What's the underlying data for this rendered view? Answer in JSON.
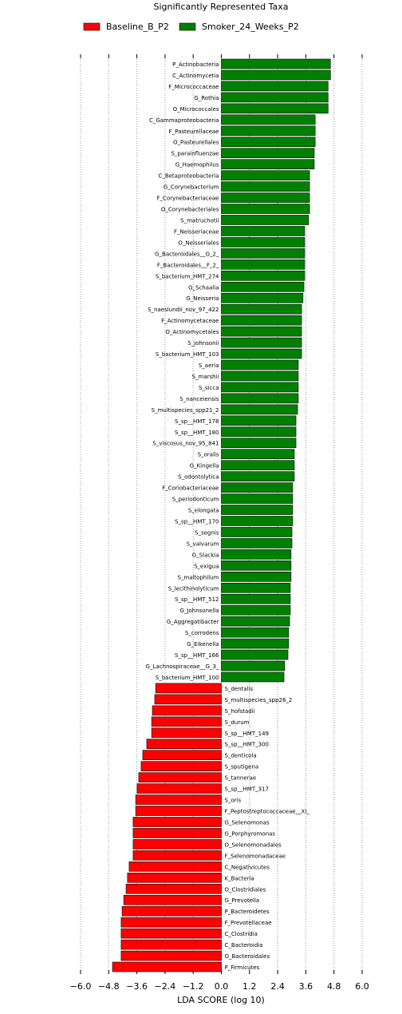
{
  "chart_data": {
    "type": "bar",
    "orientation": "horizontal",
    "title": "Significantly Represented Taxa",
    "xlabel": "LDA SCORE (log 10)",
    "categories": [
      "P_Actinobacteria",
      "C_Actinomycetia",
      "F_Micrococcaceae",
      "G_Rothia",
      "O_Micrococcales",
      "C_Gammaproteobacteria",
      "F_Pasteurellaceae",
      "O_Pasteurellales",
      "S_parainfluenzae",
      "G_Haemophilus",
      "C_Betaproteobacteria",
      "G_Corynebacterium",
      "F_Corynebacteriaceae",
      "O_Corynebacteriales",
      "S_matruchotii",
      "F_Neisseriaceae",
      "O_Neisseriales",
      "G_Bacteroidales__G_2_",
      "F_Bacteroidales__F_2_",
      "S_bacterium_HMT_274",
      "G_Schaalia",
      "G_Neisseria",
      "S_naeslundii_nov_97_422",
      "F_Actinomycetaceae",
      "O_Actinomycetales",
      "S_johnsonii",
      "S_bacterium_HMT_103",
      "S_aeria",
      "S_marshii",
      "S_sicca",
      "S_nanceiensis",
      "S_multispecies_spp21_2",
      "S_sp__HMT_178",
      "S_sp__HMT_180",
      "S_viscosus_nov_95_841",
      "S_oralis",
      "G_Kingella",
      "S_odontolytica",
      "F_Coriobacteriaceae",
      "S_periodonticum",
      "S_elongata",
      "S_sp__HMT_170",
      "S_segnis",
      "S_valvarum",
      "G_Slackia",
      "S_exigua",
      "S_maltophilum",
      "S_lecithinolyticum",
      "S_sp__HMT_512",
      "G_Johnsonella",
      "G_Aggregatibacter",
      "S_corrodens",
      "G_Eikenella",
      "S_sp__HMT_166",
      "G_Lachnospiraceae__G_3_",
      "S_bacterium_HMT_100",
      "S_dentalis",
      "S_multispecies_spp26_2",
      "S_hofstadii",
      "S_durum",
      "S_sp__HMT_149",
      "S_sp__HMT_300",
      "S_denticola",
      "S_sputigena",
      "S_tannerae",
      "S_sp__HMT_317",
      "S_oris",
      "F_Peptostreptococcaceae__XI_",
      "G_Selenomonas",
      "G_Porphyromonas",
      "O_Selenomonadales",
      "F_Selenomonadaceae",
      "C_Negativicutes",
      "K_Bacteria",
      "O_Clostridiales",
      "G_Prevotella",
      "P_Bacteroidetes",
      "F_Prevotellaceae",
      "C_Clostridia",
      "C_Bacteroidia",
      "O_Bacteroidales",
      "P_Firmicutes"
    ],
    "series": [
      {
        "name": "Baseline_B_P2",
        "color": "#ff0000",
        "values": [
          null,
          null,
          null,
          null,
          null,
          null,
          null,
          null,
          null,
          null,
          null,
          null,
          null,
          null,
          null,
          null,
          null,
          null,
          null,
          null,
          null,
          null,
          null,
          null,
          null,
          null,
          null,
          null,
          null,
          null,
          null,
          null,
          null,
          null,
          null,
          null,
          null,
          null,
          null,
          null,
          null,
          null,
          null,
          null,
          null,
          null,
          null,
          null,
          null,
          null,
          null,
          null,
          null,
          null,
          null,
          null,
          -2.8,
          -2.84,
          -2.94,
          -2.97,
          -2.97,
          -3.18,
          -3.35,
          -3.42,
          -3.52,
          -3.59,
          -3.65,
          -3.65,
          -3.76,
          -3.76,
          -3.76,
          -3.76,
          -3.93,
          -4.0,
          -4.06,
          -4.16,
          -4.23,
          -4.27,
          -4.27,
          -4.27,
          -4.27,
          -4.64
        ]
      },
      {
        "name": "Smoker_24_Weeks_P2",
        "color": "#008000",
        "values": [
          4.65,
          4.65,
          4.55,
          4.55,
          4.55,
          4.0,
          4.0,
          4.0,
          3.96,
          3.96,
          3.76,
          3.76,
          3.76,
          3.76,
          3.72,
          3.55,
          3.55,
          3.55,
          3.55,
          3.55,
          3.52,
          3.48,
          3.42,
          3.42,
          3.42,
          3.42,
          3.42,
          3.28,
          3.28,
          3.28,
          3.28,
          3.25,
          3.18,
          3.18,
          3.18,
          3.11,
          3.11,
          3.11,
          3.04,
          3.04,
          3.04,
          3.04,
          3.01,
          3.01,
          2.97,
          2.97,
          2.97,
          2.94,
          2.94,
          2.94,
          2.91,
          2.87,
          2.87,
          2.84,
          2.7,
          2.67,
          null,
          null,
          null,
          null,
          null,
          null,
          null,
          null,
          null,
          null,
          null,
          null,
          null,
          null,
          null,
          null,
          null,
          null,
          null,
          null,
          null,
          null,
          null,
          null,
          null,
          null
        ]
      }
    ],
    "xlim": [
      -6.6,
      6.6
    ],
    "xticks": [
      {
        "value": -6.0,
        "label": "−6.0"
      },
      {
        "value": -4.8,
        "label": "−4.8"
      },
      {
        "value": -3.6,
        "label": "−3.6"
      },
      {
        "value": -2.4,
        "label": "−2.4"
      },
      {
        "value": -1.2,
        "label": "−1.2"
      },
      {
        "value": 0.0,
        "label": "0.0"
      },
      {
        "value": 1.2,
        "label": "1.2"
      },
      {
        "value": 2.4,
        "label": "2.4"
      },
      {
        "value": 3.6,
        "label": "3.6"
      },
      {
        "value": 4.8,
        "label": "4.8"
      },
      {
        "value": 6.0,
        "label": "6.0"
      }
    ],
    "grid": true
  }
}
